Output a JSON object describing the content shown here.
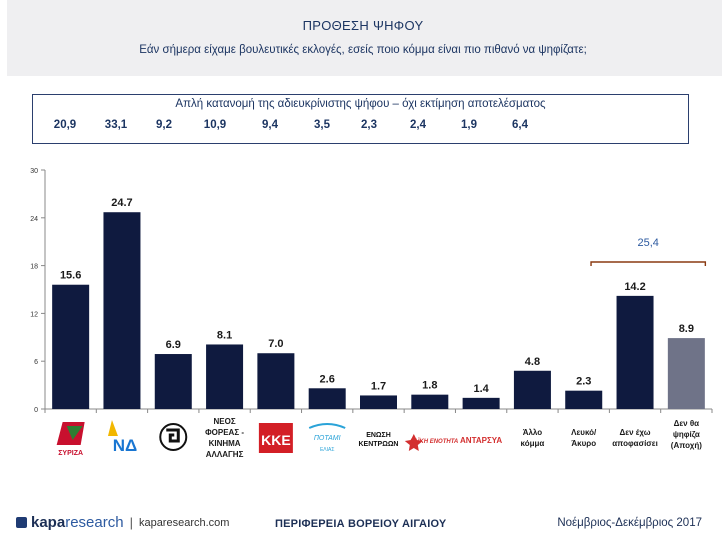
{
  "header": {
    "title": "ΠΡΟΘΕΣΗ ΨΗΦΟΥ",
    "subtitle": "Εάν σήμερα είχαμε βουλευτικές εκλογές, εσείς ποιο κόμμα είναι πιο πιθανό να ψηφίζατε;"
  },
  "infobox": {
    "title": "Απλή κατανομή της αδιευκρίνιστης ψήφου – όχι εκτίμηση αποτελέσματος",
    "values": [
      "20,9",
      "33,1",
      "9,2",
      "10,9",
      "9,4",
      "3,5",
      "2,3",
      "2,4",
      "1,9",
      "6,4"
    ]
  },
  "chart_data": {
    "type": "bar",
    "categories": [
      "ΣΥΡΙΖΑ",
      "ΝΔ",
      "Χρυσή Αυγή",
      "ΝΕΟΣ ΦΟΡΕΑΣ - ΚΙΝΗΜΑ ΑΛΛΑΓΗΣ",
      "ΚΚΕ",
      "Ποτάμι",
      "Ένωση Κεντρώων",
      "ΛΑΕ",
      "ΑΝΤΑΡΣΥΑ",
      "Άλλο κόμμα",
      "Λευκό/Άκυρο",
      "Δεν έχω αποφασίσει",
      "Δεν θα ψηφίζα (Αποχή)"
    ],
    "values": [
      15.6,
      24.7,
      6.9,
      8.1,
      7.0,
      2.6,
      1.7,
      1.8,
      1.4,
      4.8,
      2.3,
      14.2,
      8.9
    ],
    "value_labels": [
      "15.6",
      "24.7",
      "6.9",
      "8.1",
      "7.0",
      "2.6",
      "1.7",
      "1.8",
      "1.4",
      "4.8",
      "2.3",
      "14.2",
      "8.9"
    ],
    "yticks": [
      "0",
      "6",
      "12",
      "18",
      "24",
      "30"
    ],
    "ylim": [
      0,
      30
    ],
    "bracket_label": "25,4",
    "colors": {
      "bar": "#0f1a3f",
      "last_bar": "#6f7388",
      "bracket": "#8a3a10",
      "bracket_label": "#2d5aa0"
    },
    "text_labels": {
      "party4": [
        "ΝΕΟΣ",
        "ΦΟΡΕΑΣ -",
        "ΚΙΝΗΜΑ",
        "ΑΛΛΑΓΗΣ"
      ],
      "other": [
        "Άλλο",
        "κόμμα"
      ],
      "blank": [
        "Λευκό/",
        "Άκυρο"
      ],
      "undecided": [
        "Δεν έχω",
        "αποφασίσει"
      ],
      "abstain": [
        "Δεν θα",
        "ψηφίζα",
        "(Αποχή)"
      ]
    },
    "logo_texts": {
      "syriza": "ΣΥΡΙΖΑ",
      "nd": "ΝΔ",
      "kke": "ΚΚΕ",
      "potami": "ΠΟΤΑΜΙ",
      "potami_sub": "ΕΛΙΑΣ",
      "enosi1": "ΕΝΩΣΗ",
      "enosi2": "ΚΕΝΤΡΩΩΝ",
      "lae": "ΛΑΪΚΗ ΕΝΟΤΗΤΑ",
      "antarsya": "ΑΝΤΑΡΣΥΑ"
    }
  },
  "footer": {
    "logo_kapa": "kapa",
    "logo_research": "research",
    "separator": "|",
    "url": "kaparesearch.com",
    "region": "ΠΕΡΙΦΕΡΕΙΑ ΒΟΡΕΙΟΥ ΑΙΓΑΙΟΥ",
    "period": "Νοέμβριος-Δεκέμβριος 2017"
  }
}
